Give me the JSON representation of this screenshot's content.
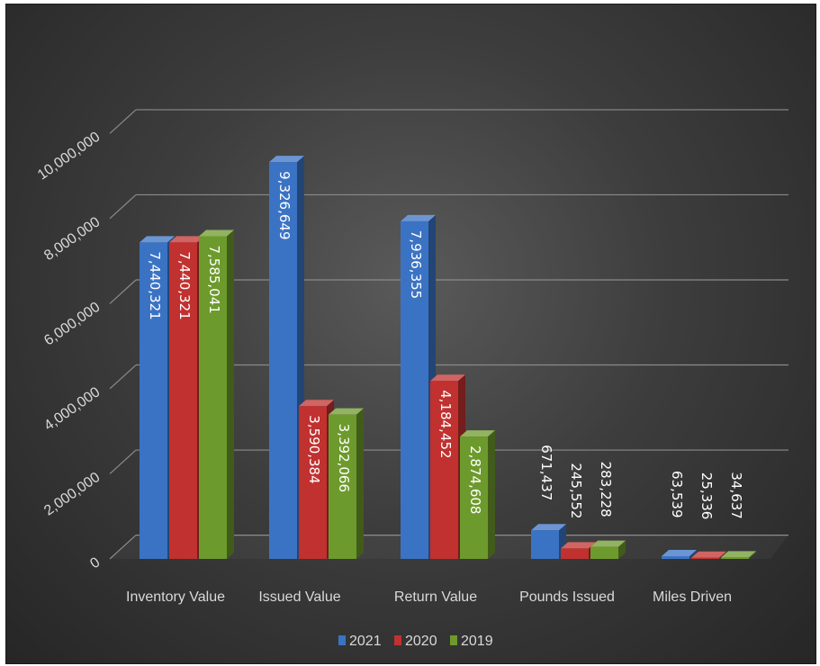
{
  "chart_data": {
    "type": "bar",
    "categories": [
      "Inventory Value",
      "Issued Value",
      "Return Value",
      "Pounds Issued",
      "Miles Driven"
    ],
    "series": [
      {
        "name": "2021",
        "color": "#3b73c4",
        "values": [
          7440321,
          9326649,
          7936355,
          671437,
          63539
        ],
        "labels": [
          "7,440,321",
          "9,326,649",
          "7,936,355",
          "671,437",
          "63,539"
        ]
      },
      {
        "name": "2020",
        "color": "#c0312f",
        "values": [
          7440321,
          3590384,
          4184452,
          245552,
          25336
        ],
        "labels": [
          "7,440,321",
          "3,590,384",
          "4,184,452",
          "245,552",
          "25,336"
        ]
      },
      {
        "name": "2019",
        "color": "#6d9a2c",
        "values": [
          7585041,
          3392066,
          2874608,
          283228,
          34637
        ],
        "labels": [
          "7,585,041",
          "3,392,066",
          "2,874,608",
          "283,228",
          "34,637"
        ]
      }
    ],
    "y_ticks": [
      0,
      2000000,
      4000000,
      6000000,
      8000000,
      10000000
    ],
    "y_tick_labels": [
      "0",
      "2,000,000",
      "4,000,000",
      "6,000,000",
      "8,000,000",
      "10,000,000"
    ],
    "ylim": [
      0,
      10000000
    ],
    "grid": true,
    "legend_position": "bottom",
    "style": "3d-clustered-column"
  }
}
